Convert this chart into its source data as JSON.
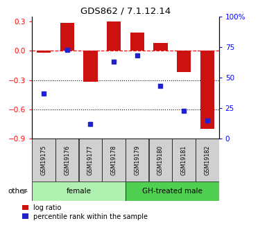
{
  "title": "GDS862 / 7.1.12.14",
  "samples": [
    "GSM19175",
    "GSM19176",
    "GSM19177",
    "GSM19178",
    "GSM19179",
    "GSM19180",
    "GSM19181",
    "GSM19182"
  ],
  "log_ratio": [
    -0.02,
    0.29,
    -0.32,
    0.3,
    0.19,
    0.08,
    -0.22,
    -0.8
  ],
  "percentile_rank": [
    37,
    73,
    12,
    63,
    68,
    43,
    23,
    15
  ],
  "groups": [
    {
      "label": "female",
      "start": 0,
      "end": 3,
      "color": "#b0f0b0"
    },
    {
      "label": "GH-treated male",
      "start": 4,
      "end": 7,
      "color": "#50d050"
    }
  ],
  "bar_color": "#cc1111",
  "dot_color": "#2222cc",
  "ylim_left": [
    -0.9,
    0.35
  ],
  "ylim_right": [
    0,
    100
  ],
  "y_ticks_left": [
    0.3,
    0.0,
    -0.3,
    -0.6,
    -0.9
  ],
  "y_ticks_right": [
    100,
    75,
    50,
    25,
    0
  ],
  "dotted_lines": [
    -0.3,
    -0.6
  ],
  "legend_items": [
    "log ratio",
    "percentile rank within the sample"
  ],
  "other_label": "other",
  "sample_box_color": "#d0d0d0",
  "bar_width": 0.6
}
